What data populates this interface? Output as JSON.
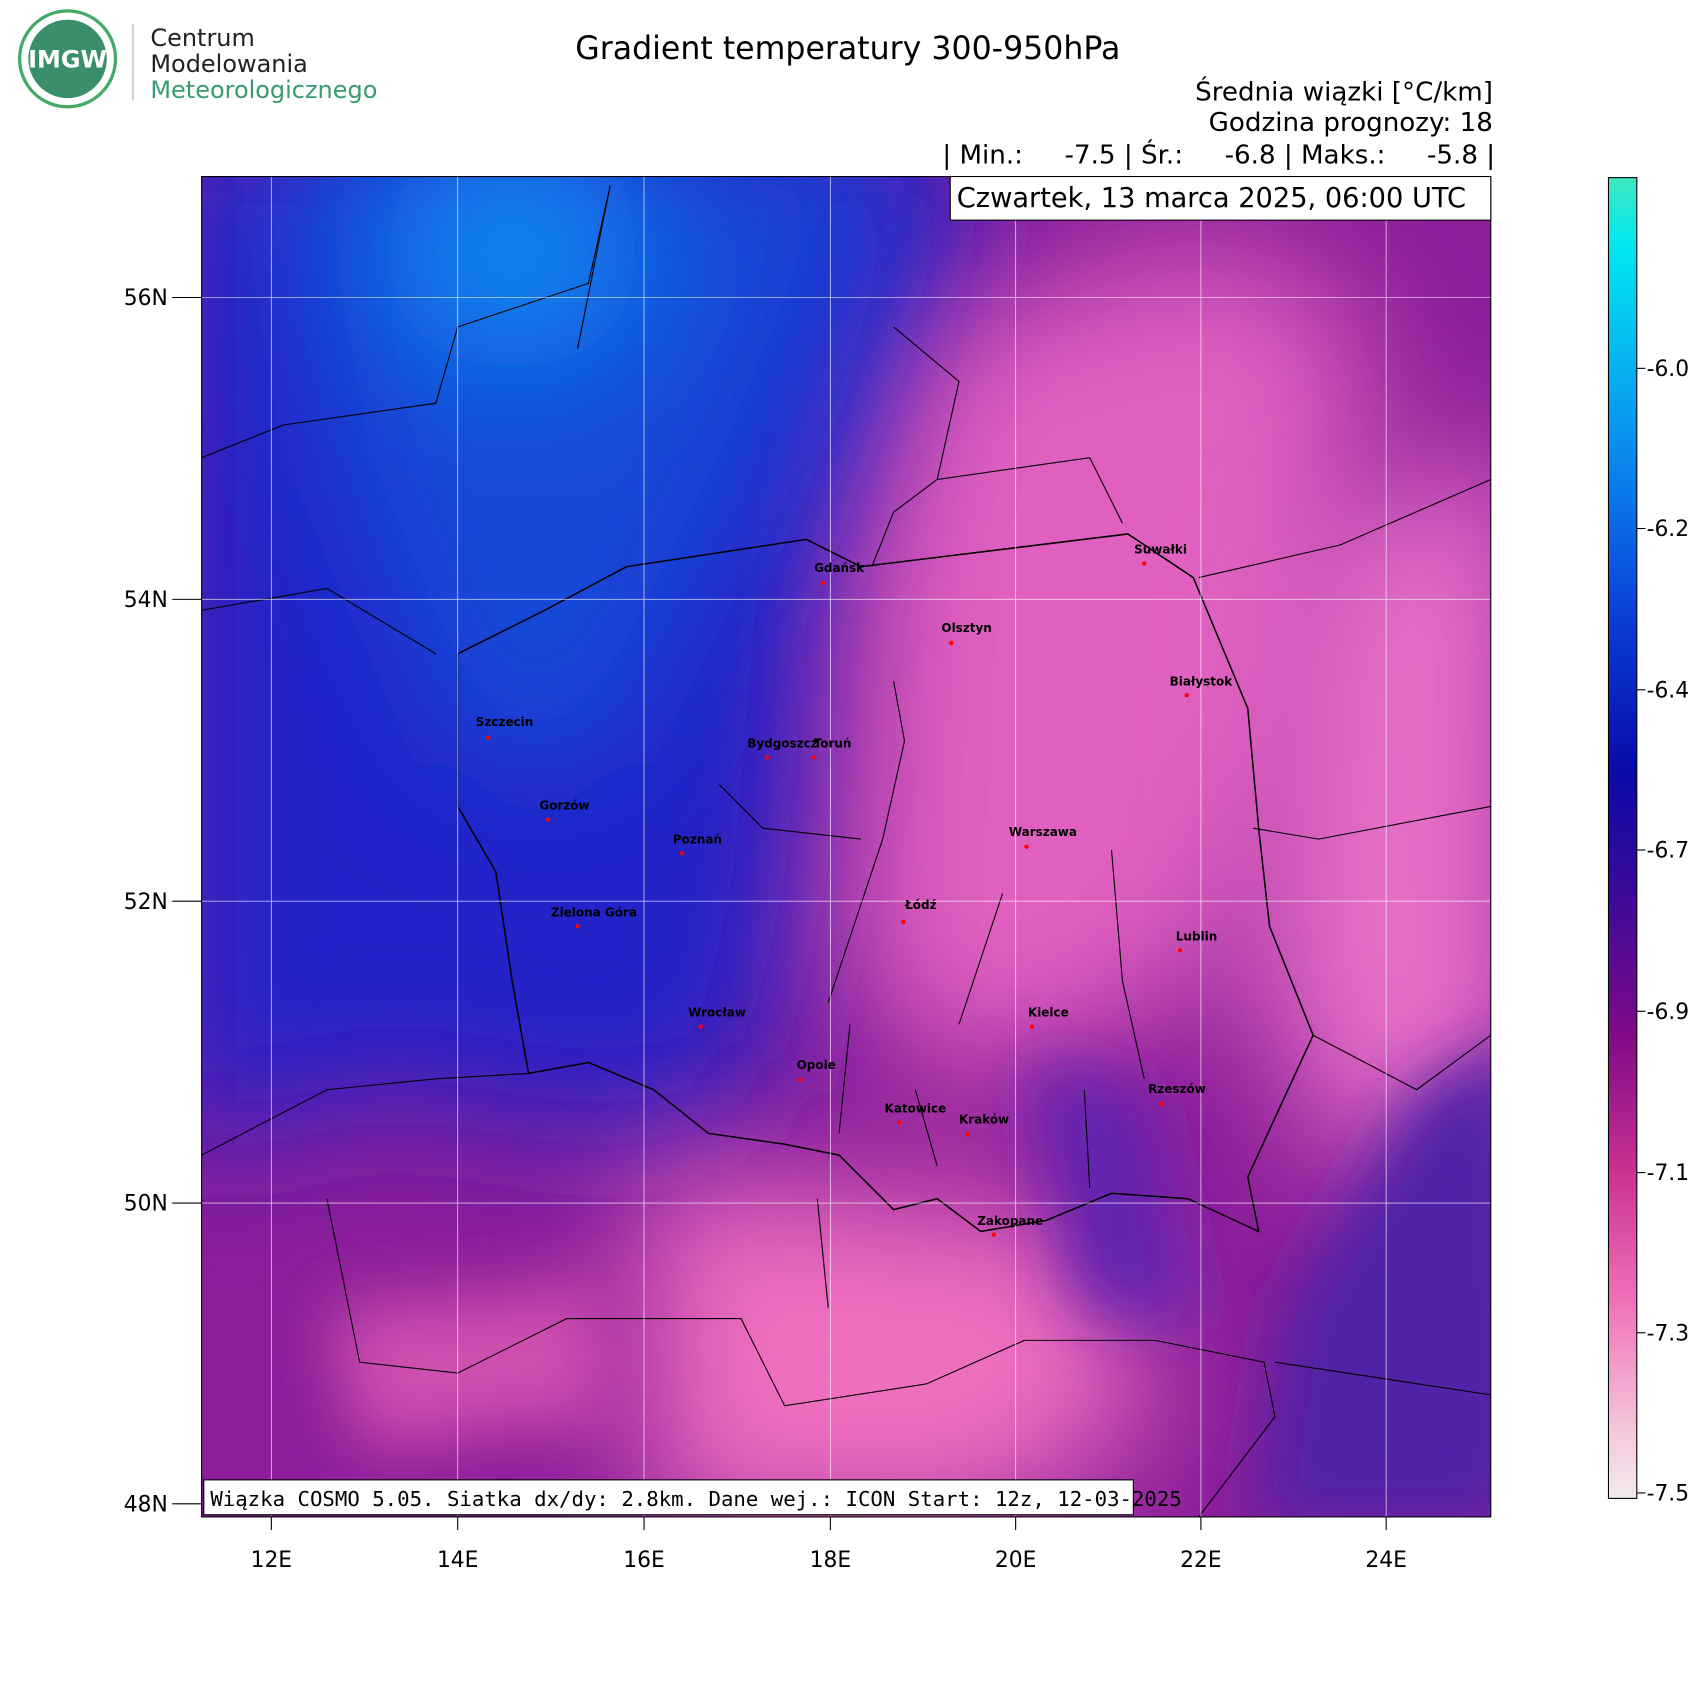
{
  "logo": {
    "badge": "IMGW",
    "line1": "Centrum",
    "line2": "Modelowania",
    "line3": "Meteorologicznego"
  },
  "header": {
    "title": "Gradient temperatury 300-950hPa",
    "unit": "Średnia wiązki [°C/km]",
    "forecast_hour": "Godzina prognozy: 18",
    "stats": "| Min.:     -7.5 | Śr.:     -6.8 | Maks.:     -5.8 |",
    "date": "Czwartek, 13 marca 2025, 06:00 UTC"
  },
  "footer": "Wiązka COSMO 5.05. Siatka dx/dy: 2.8km. Dane wej.: ICON Start: 12z, 12-03-2025",
  "lon_ticks": [
    "12E",
    "14E",
    "16E",
    "18E",
    "20E",
    "22E",
    "24E"
  ],
  "lat_ticks": [
    "56N",
    "54N",
    "52N",
    "50N",
    "48N"
  ],
  "colorbar_ticks": [
    "-6.0",
    "-6.2",
    "-6.4",
    "-6.7",
    "-6.9",
    "-7.1",
    "-7.3",
    "-7.5"
  ],
  "cities": [
    "Gdańsk",
    "Olsztyn",
    "Suwałki",
    "Białystok",
    "Szczecin",
    "Bydgoszcz",
    "Toruń",
    "Gorzów",
    "Poznań",
    "Warszawa",
    "Zielona Góra",
    "Łódź",
    "Lublin",
    "Wrocław",
    "Kielce",
    "Opole",
    "Rzeszów",
    "Katowice",
    "Kraków",
    "Zakopane"
  ]
}
